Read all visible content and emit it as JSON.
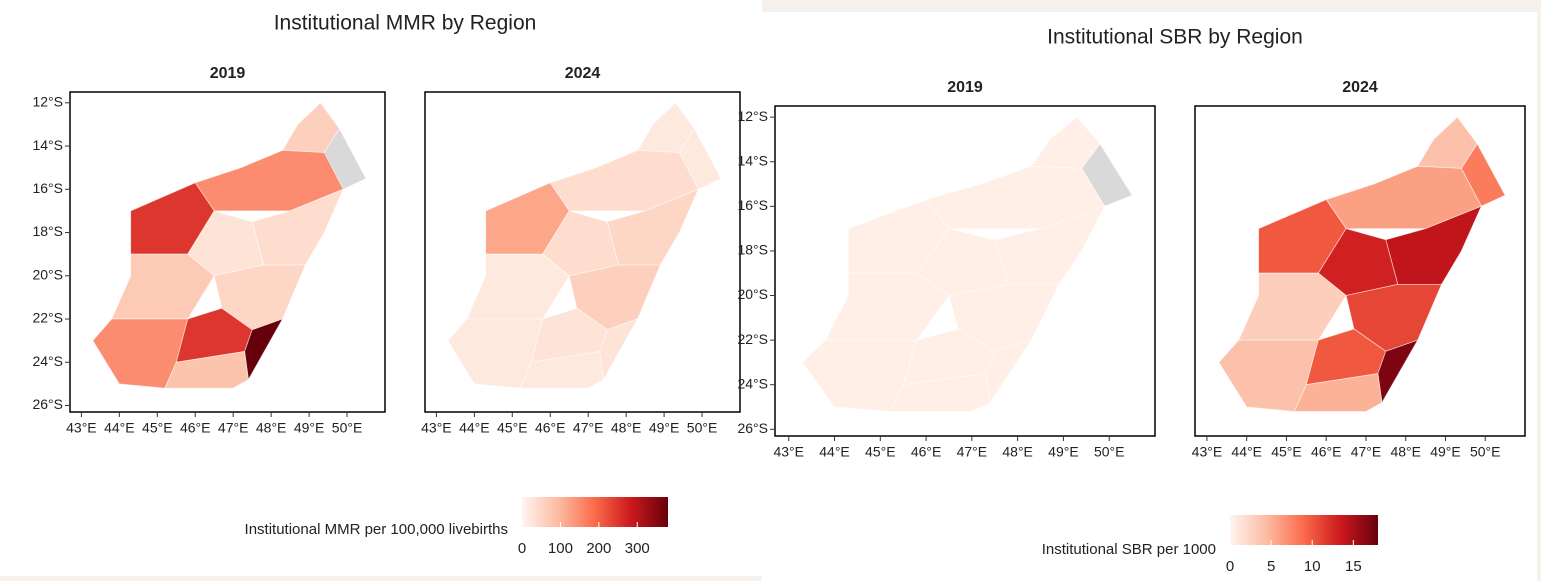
{
  "panels": [
    {
      "title": "Institutional MMR by Region",
      "maps": [
        {
          "title": "2019",
          "values": [
            60,
            null,
            150,
            250,
            40,
            30,
            70,
            50,
            150,
            250,
            380,
            80
          ]
        },
        {
          "title": "2024",
          "values": [
            20,
            20,
            40,
            120,
            50,
            40,
            20,
            60,
            20,
            30,
            30,
            20
          ]
        }
      ],
      "xlim": [
        42.7,
        51.0
      ],
      "ylim": [
        -26.3,
        -11.5
      ],
      "xticks": [
        {
          "value": 43,
          "label": "43°E"
        },
        {
          "value": 44,
          "label": "44°E"
        },
        {
          "value": 45,
          "label": "45°E"
        },
        {
          "value": 46,
          "label": "46°E"
        },
        {
          "value": 47,
          "label": "47°E"
        },
        {
          "value": 48,
          "label": "48°E"
        },
        {
          "value": 49,
          "label": "49°E"
        },
        {
          "value": 50,
          "label": "50°E"
        }
      ],
      "yticks": [
        {
          "value": -12,
          "label": "12°S"
        },
        {
          "value": -14,
          "label": "14°S"
        },
        {
          "value": -16,
          "label": "16°S"
        },
        {
          "value": -18,
          "label": "18°S"
        },
        {
          "value": -20,
          "label": "20°S"
        },
        {
          "value": -22,
          "label": "22°S"
        },
        {
          "value": -24,
          "label": "24°S"
        },
        {
          "value": -26,
          "label": "26°S"
        }
      ],
      "legend": {
        "title": "Institutional MMR per 100,000 livebirths",
        "lim": [
          0,
          380
        ],
        "ticks": [
          0,
          100,
          200,
          300
        ],
        "colors": [
          "#fff5f0",
          "#fcbba1",
          "#fb6a4a",
          "#cb181d",
          "#67000d"
        ],
        "na_color": "#d9d9d9"
      }
    },
    {
      "title": "Institutional SBR by Region",
      "maps": [
        {
          "title": "2019",
          "values": [
            0.5,
            null,
            0.5,
            0.5,
            0.5,
            0.5,
            0.5,
            0.5,
            0.5,
            0.5,
            0.5,
            0.5
          ]
        },
        {
          "title": "2024",
          "values": [
            4,
            8,
            6,
            10,
            14,
            13,
            3,
            11,
            4,
            10,
            17,
            5
          ]
        }
      ],
      "xlim": [
        42.7,
        51.0
      ],
      "ylim": [
        -26.3,
        -11.5
      ],
      "xticks": [
        {
          "value": 43,
          "label": "43°E"
        },
        {
          "value": 44,
          "label": "44°E"
        },
        {
          "value": 45,
          "label": "45°E"
        },
        {
          "value": 46,
          "label": "46°E"
        },
        {
          "value": 47,
          "label": "47°E"
        },
        {
          "value": 48,
          "label": "48°E"
        },
        {
          "value": 49,
          "label": "49°E"
        },
        {
          "value": 50,
          "label": "50°E"
        }
      ],
      "yticks": [
        {
          "value": -12,
          "label": "12°S"
        },
        {
          "value": -14,
          "label": "14°S"
        },
        {
          "value": -16,
          "label": "16°S"
        },
        {
          "value": -18,
          "label": "18°S"
        },
        {
          "value": -20,
          "label": "20°S"
        },
        {
          "value": -22,
          "label": "22°S"
        },
        {
          "value": -24,
          "label": "24°S"
        },
        {
          "value": -26,
          "label": "26°S"
        }
      ],
      "legend": {
        "title": "Institutional SBR per 1000",
        "lim": [
          0,
          18
        ],
        "ticks": [
          0,
          5,
          10,
          15
        ],
        "colors": [
          "#fff5f0",
          "#fcbba1",
          "#fb6a4a",
          "#cb181d",
          "#67000d"
        ],
        "na_color": "#d9d9d9"
      }
    }
  ]
}
